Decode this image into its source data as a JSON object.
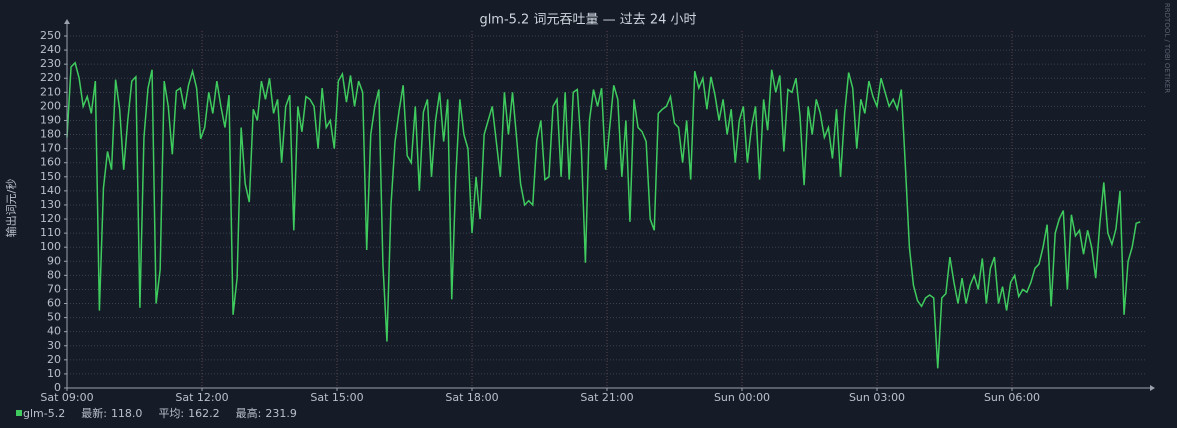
{
  "chart_data": {
    "type": "line",
    "title": "glm-5.2 词元吞吐量 — 过去 24 小时",
    "y_label": "输出词元/秒",
    "watermark": "RRDTOOL / TOBI OETIKER",
    "xlim": [
      0,
      24
    ],
    "ylim": [
      0,
      250
    ],
    "grid": true,
    "xticks": [
      {
        "value": 0,
        "label": "Sat 09:00"
      },
      {
        "value": 3,
        "label": "Sat 12:00"
      },
      {
        "value": 6,
        "label": "Sat 15:00"
      },
      {
        "value": 9,
        "label": "Sat 18:00"
      },
      {
        "value": 12,
        "label": "Sat 21:00"
      },
      {
        "value": 15,
        "label": "Sun 00:00"
      },
      {
        "value": 18,
        "label": "Sun 03:00"
      },
      {
        "value": 21,
        "label": "Sun 06:00"
      }
    ],
    "yticks": [
      0,
      10,
      20,
      30,
      40,
      50,
      60,
      70,
      80,
      90,
      100,
      110,
      120,
      130,
      140,
      150,
      160,
      170,
      180,
      190,
      200,
      210,
      220,
      230,
      240,
      250
    ],
    "x": [
      0,
      0.09,
      0.18,
      0.27,
      0.36,
      0.45,
      0.54,
      0.63,
      0.72,
      0.81,
      0.9,
      0.99,
      1.08,
      1.17,
      1.26,
      1.35,
      1.44,
      1.53,
      1.62,
      1.71,
      1.8,
      1.89,
      1.98,
      2.07,
      2.16,
      2.25,
      2.34,
      2.43,
      2.52,
      2.61,
      2.7,
      2.79,
      2.88,
      2.97,
      3.06,
      3.15,
      3.24,
      3.33,
      3.42,
      3.51,
      3.6,
      3.69,
      3.78,
      3.87,
      3.96,
      4.05,
      4.14,
      4.23,
      4.32,
      4.41,
      4.5,
      4.59,
      4.68,
      4.77,
      4.86,
      4.95,
      5.04,
      5.13,
      5.22,
      5.31,
      5.4,
      5.49,
      5.58,
      5.67,
      5.76,
      5.85,
      5.94,
      6.03,
      6.12,
      6.21,
      6.3,
      6.39,
      6.48,
      6.57,
      6.66,
      6.75,
      6.84,
      6.93,
      7.02,
      7.11,
      7.2,
      7.29,
      7.38,
      7.47,
      7.56,
      7.65,
      7.74,
      7.83,
      7.92,
      8.01,
      8.1,
      8.19,
      8.28,
      8.37,
      8.46,
      8.55,
      8.64,
      8.73,
      8.82,
      8.91,
      9,
      9.09,
      9.18,
      9.27,
      9.36,
      9.45,
      9.54,
      9.63,
      9.72,
      9.81,
      9.9,
      9.99,
      10.08,
      10.17,
      10.26,
      10.35,
      10.44,
      10.53,
      10.62,
      10.71,
      10.8,
      10.89,
      10.98,
      11.07,
      11.16,
      11.25,
      11.34,
      11.43,
      11.52,
      11.61,
      11.7,
      11.79,
      11.88,
      11.97,
      12.06,
      12.15,
      12.24,
      12.33,
      12.42,
      12.51,
      12.6,
      12.69,
      12.78,
      12.87,
      12.96,
      13.05,
      13.14,
      13.23,
      13.32,
      13.41,
      13.5,
      13.59,
      13.68,
      13.77,
      13.86,
      13.95,
      14.04,
      14.13,
      14.22,
      14.31,
      14.4,
      14.49,
      14.58,
      14.67,
      14.76,
      14.85,
      14.94,
      15.03,
      15.12,
      15.21,
      15.3,
      15.39,
      15.48,
      15.57,
      15.66,
      15.75,
      15.84,
      15.93,
      16.02,
      16.11,
      16.2,
      16.29,
      16.38,
      16.47,
      16.56,
      16.65,
      16.74,
      16.83,
      16.92,
      17.01,
      17.1,
      17.19,
      17.28,
      17.37,
      17.46,
      17.55,
      17.64,
      17.73,
      17.82,
      17.91,
      18,
      18.09,
      18.18,
      18.27,
      18.36,
      18.45,
      18.54,
      18.63,
      18.72,
      18.81,
      18.9,
      18.99,
      19.08,
      19.17,
      19.26,
      19.35,
      19.44,
      19.53,
      19.62,
      19.71,
      19.8,
      19.89,
      19.98,
      20.07,
      20.16,
      20.25,
      20.34,
      20.43,
      20.52,
      20.61,
      20.7,
      20.79,
      20.88,
      20.97,
      21.06,
      21.15,
      21.24,
      21.33,
      21.42,
      21.51,
      21.6,
      21.69,
      21.78,
      21.87,
      21.96,
      22.05,
      22.14,
      22.23,
      22.32,
      22.41,
      22.5,
      22.59,
      22.68,
      22.77,
      22.86,
      22.95,
      23.04,
      23.13,
      23.22,
      23.31,
      23.4,
      23.49,
      23.58,
      23.67,
      23.76,
      23.85
    ],
    "series": [
      {
        "name": "glm-5.2",
        "color": "#3fcb5e",
        "values": [
          178,
          228,
          231,
          220,
          200,
          207,
          195,
          218,
          55,
          142,
          168,
          155,
          219,
          198,
          155,
          190,
          218,
          221,
          57,
          178,
          213,
          226,
          60,
          84,
          218,
          200,
          166,
          211,
          213,
          198,
          215,
          225,
          213,
          177,
          185,
          210,
          195,
          218,
          200,
          185,
          208,
          52,
          78,
          185,
          145,
          132,
          198,
          190,
          218,
          205,
          220,
          195,
          205,
          160,
          200,
          208,
          112,
          200,
          182,
          207,
          205,
          200,
          170,
          213,
          185,
          190,
          170,
          218,
          223,
          203,
          222,
          200,
          218,
          210,
          98,
          180,
          200,
          212,
          88,
          33,
          130,
          175,
          197,
          215,
          165,
          160,
          200,
          140,
          196,
          205,
          150,
          190,
          210,
          175,
          205,
          63,
          150,
          205,
          180,
          170,
          110,
          150,
          120,
          180,
          190,
          200,
          175,
          150,
          210,
          180,
          210,
          178,
          145,
          130,
          133,
          130,
          176,
          190,
          148,
          150,
          200,
          205,
          150,
          210,
          148,
          210,
          212,
          170,
          89,
          190,
          212,
          200,
          213,
          155,
          185,
          215,
          205,
          150,
          190,
          118,
          205,
          185,
          182,
          175,
          120,
          112,
          195,
          198,
          200,
          207,
          188,
          185,
          160,
          190,
          148,
          225,
          213,
          220,
          198,
          221,
          208,
          190,
          205,
          180,
          198,
          160,
          190,
          200,
          160,
          185,
          200,
          148,
          205,
          183,
          226,
          210,
          222,
          168,
          212,
          210,
          220,
          193,
          144,
          200,
          180,
          205,
          195,
          178,
          185,
          163,
          198,
          150,
          195,
          224,
          213,
          170,
          205,
          195,
          218,
          207,
          200,
          220,
          210,
          200,
          205,
          198,
          212,
          158,
          100,
          73,
          62,
          58,
          64,
          66,
          64,
          14,
          64,
          67,
          93,
          75,
          60,
          78,
          60,
          73,
          80,
          70,
          92,
          60,
          85,
          93,
          60,
          72,
          55,
          75,
          80,
          65,
          70,
          68,
          75,
          85,
          88,
          100,
          116,
          58,
          110,
          120,
          126,
          70,
          123,
          108,
          112,
          95,
          112,
          100,
          78,
          116,
          146,
          110,
          102,
          113,
          140,
          52,
          90,
          100,
          117,
          118
        ]
      }
    ],
    "stats": [
      {
        "label": "最新:",
        "value": "118.0"
      },
      {
        "label": "平均:",
        "value": "162.2"
      },
      {
        "label": "最高:",
        "value": "231.9"
      }
    ]
  }
}
